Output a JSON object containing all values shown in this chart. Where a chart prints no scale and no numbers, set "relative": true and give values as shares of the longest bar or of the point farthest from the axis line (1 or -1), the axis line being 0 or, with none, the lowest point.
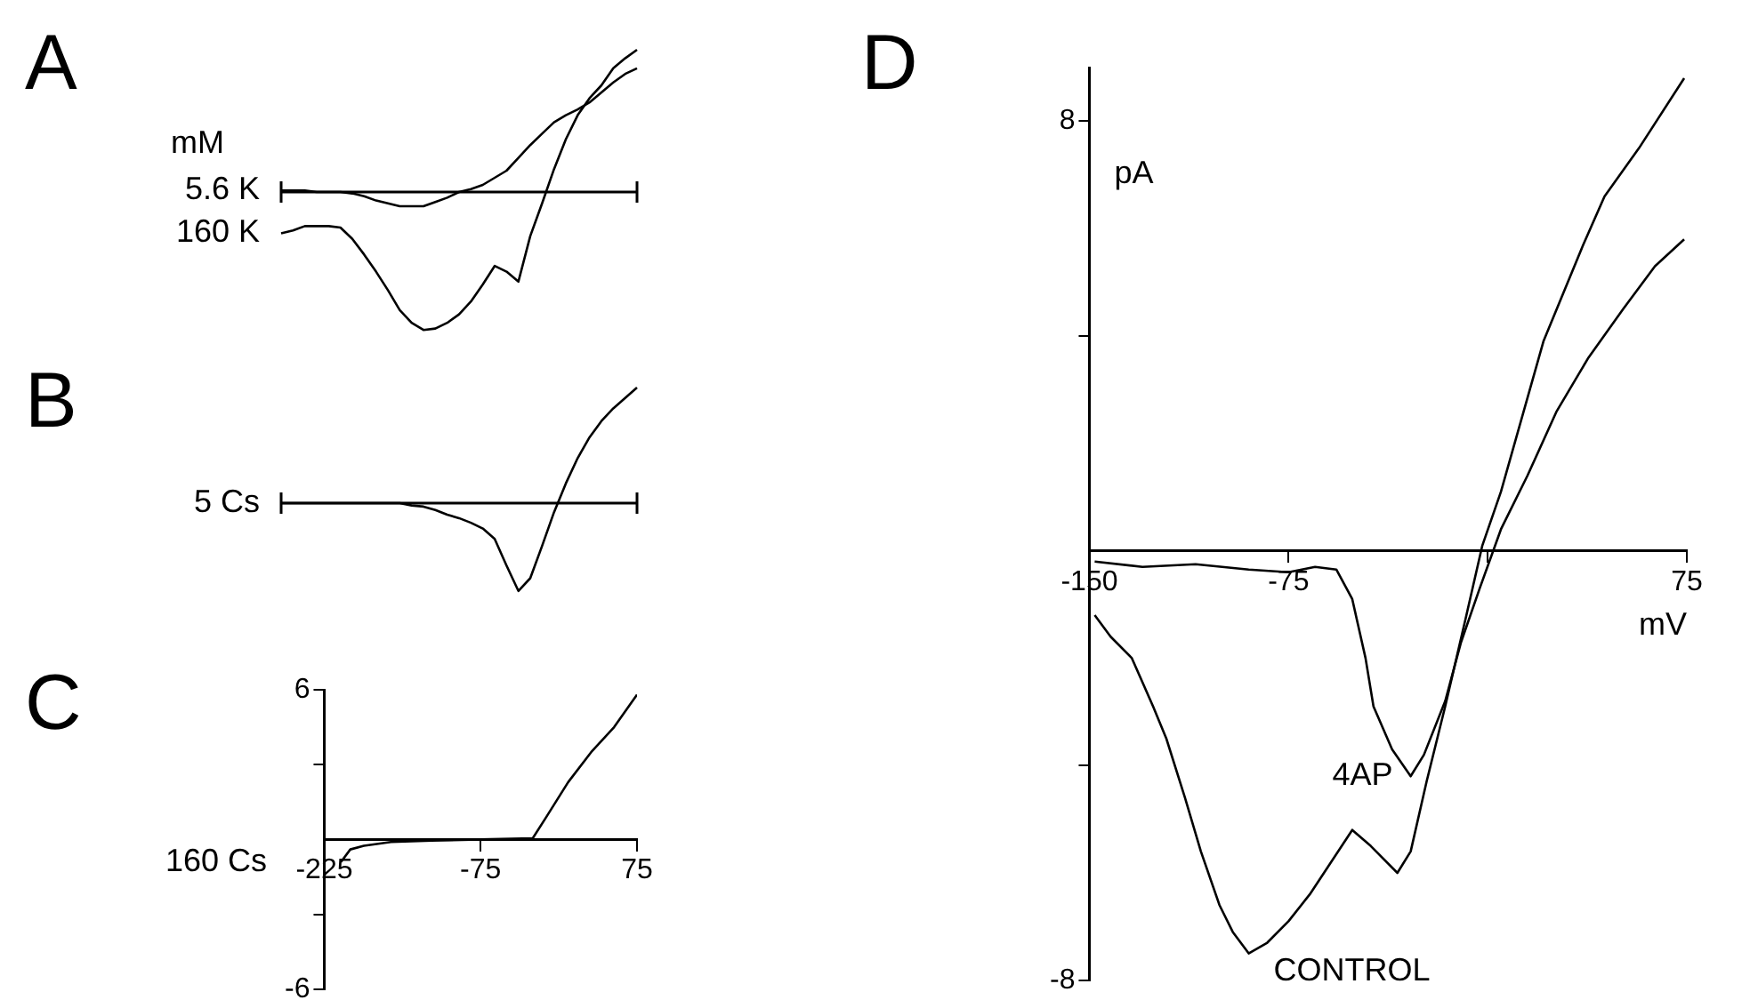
{
  "chart_data": [
    {
      "type": "line",
      "title": "A",
      "legend_title": "mM",
      "relative": true,
      "tick_labels": false,
      "categories": [
        null,
        null,
        null,
        null,
        null,
        null,
        null,
        null,
        null,
        null,
        null,
        null,
        null,
        null,
        null,
        null,
        null,
        null,
        null,
        null,
        null,
        null,
        null,
        null,
        null,
        null,
        null,
        null,
        null,
        null,
        null
      ],
      "series": [
        {
          "name": "5.6 K",
          "color": "#000000",
          "values": [
            0.01,
            0.01,
            0.01,
            0.0,
            0.0,
            0.0,
            -0.01,
            -0.03,
            -0.06,
            -0.08,
            -0.1,
            -0.1,
            -0.1,
            -0.07,
            -0.04,
            0.0,
            0.02,
            0.05,
            0.1,
            0.15,
            0.24,
            0.33,
            0.41,
            0.49,
            0.54,
            0.58,
            0.63,
            0.7,
            0.77,
            0.83,
            0.87
          ]
        },
        {
          "name": "160 K",
          "color": "#000000",
          "values": [
            -0.29,
            -0.27,
            -0.24,
            -0.24,
            -0.24,
            -0.25,
            -0.33,
            -0.44,
            -0.56,
            -0.69,
            -0.83,
            -0.92,
            -0.97,
            -0.96,
            -0.92,
            -0.86,
            -0.77,
            -0.65,
            -0.52,
            -0.56,
            -0.63,
            -0.31,
            -0.08,
            0.16,
            0.37,
            0.54,
            0.66,
            0.75,
            0.87,
            0.94,
            1.0
          ]
        }
      ]
    },
    {
      "type": "line",
      "title": "B",
      "relative": true,
      "tick_labels": false,
      "categories": [
        null,
        null,
        null,
        null,
        null,
        null,
        null,
        null,
        null,
        null,
        null,
        null,
        null,
        null,
        null,
        null,
        null,
        null,
        null,
        null,
        null,
        null,
        null,
        null,
        null,
        null,
        null,
        null,
        null,
        null,
        null
      ],
      "series": [
        {
          "name": "5 Cs",
          "color": "#000000",
          "values": [
            0,
            0,
            0,
            0,
            0,
            0,
            0,
            0,
            0,
            0,
            0.0,
            -0.02,
            -0.03,
            -0.06,
            -0.1,
            -0.13,
            -0.17,
            -0.22,
            -0.31,
            -0.54,
            -0.76,
            -0.65,
            -0.37,
            -0.08,
            0.17,
            0.39,
            0.57,
            0.71,
            0.82,
            0.91,
            1.0
          ]
        }
      ]
    },
    {
      "type": "line",
      "title": "C",
      "xlim": [
        -225,
        75
      ],
      "ylim": [
        -6,
        6
      ],
      "xticks": [
        -225,
        -75,
        75
      ],
      "yticks": [
        6,
        {
          "value": 3,
          "label": null
        },
        {
          "value": -3,
          "label": null
        },
        -6
      ],
      "series": [
        {
          "name": "160 Cs",
          "color": "#000000",
          "x": [
            -209,
            -200,
            -187,
            -161,
            -122,
            -75,
            -25,
            -12,
            9,
            31,
            53,
            75
          ],
          "values": [
            -0.9,
            -0.4,
            -0.25,
            -0.1,
            -0.05,
            0,
            0.05,
            0.9,
            2.3,
            3.5,
            4.5,
            5.8
          ]
        }
      ]
    },
    {
      "type": "line",
      "title": "D",
      "xlabel": "mV",
      "ylabel": "pA",
      "xlim": [
        -150,
        75
      ],
      "ylim": [
        -8,
        9
      ],
      "xticks": [
        -150,
        -75,
        {
          "value": 0,
          "label": null
        },
        75
      ],
      "yticks": [
        8,
        {
          "value": 4,
          "label": null
        },
        {
          "value": -4,
          "label": null
        },
        -8
      ],
      "series": [
        {
          "name": "4AP",
          "color": "#000000",
          "x": [
            -148,
            -130,
            -110,
            -90,
            -75,
            -65,
            -57,
            -51,
            -46,
            -43,
            -36,
            -29,
            -24,
            -16,
            -10,
            -3,
            5,
            15,
            26,
            38,
            51,
            63,
            74
          ],
          "values": [
            -0.2,
            -0.3,
            -0.25,
            -0.35,
            -0.4,
            -0.3,
            -0.35,
            -0.9,
            -2.0,
            -2.9,
            -3.7,
            -4.2,
            -3.8,
            -2.8,
            -1.7,
            -0.7,
            0.4,
            1.4,
            2.6,
            3.6,
            4.5,
            5.3,
            5.8
          ]
        },
        {
          "name": "CONTROL",
          "color": "#000000",
          "x": [
            -148,
            -142,
            -134,
            -126,
            -121,
            -114,
            -108,
            -101,
            -96,
            -90,
            -83,
            -75,
            -67,
            -59,
            -51,
            -44,
            -34,
            -29,
            -23,
            -16,
            -8,
            -2,
            5,
            13,
            21,
            36,
            44,
            57,
            74
          ],
          "values": [
            -1.2,
            -1.6,
            -2.0,
            -2.9,
            -3.5,
            -4.6,
            -5.6,
            -6.6,
            -7.1,
            -7.5,
            -7.3,
            -6.9,
            -6.4,
            -5.8,
            -5.2,
            -5.5,
            -6.0,
            -5.6,
            -4.3,
            -2.9,
            -1.2,
            0.1,
            1.1,
            2.5,
            3.9,
            5.7,
            6.6,
            7.5,
            8.8
          ]
        }
      ]
    }
  ]
}
